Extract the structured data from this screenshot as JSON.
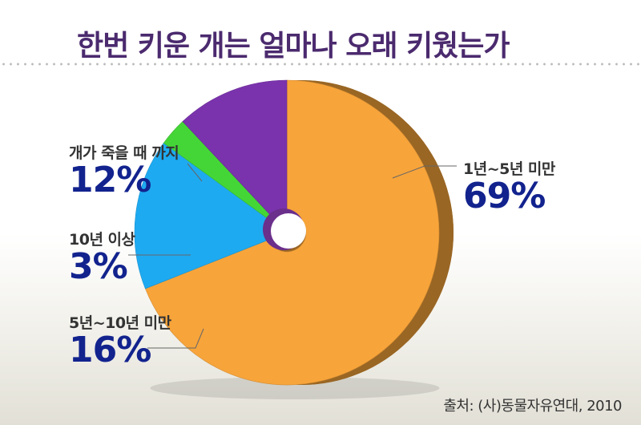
{
  "title": "한번 키운 개는 얼마나 오래 키웠는가",
  "source": "출처: (사)동물자유연대, 2010",
  "chart_data": {
    "type": "pie",
    "title": "한번 키운 개는 얼마나 오래 키웠는가",
    "slices": [
      {
        "label": "1년~5년 미만",
        "value": 69,
        "display": "69%",
        "color": "#f7a43a"
      },
      {
        "label": "5년~10년 미만",
        "value": 16,
        "display": "16%",
        "color": "#1eaaf1"
      },
      {
        "label": "10년 이상",
        "value": 3,
        "display": "3%",
        "color": "#44d637"
      },
      {
        "label": "개가 죽을 때 까지",
        "value": 12,
        "display": "12%",
        "color": "#7a33ad"
      }
    ]
  }
}
